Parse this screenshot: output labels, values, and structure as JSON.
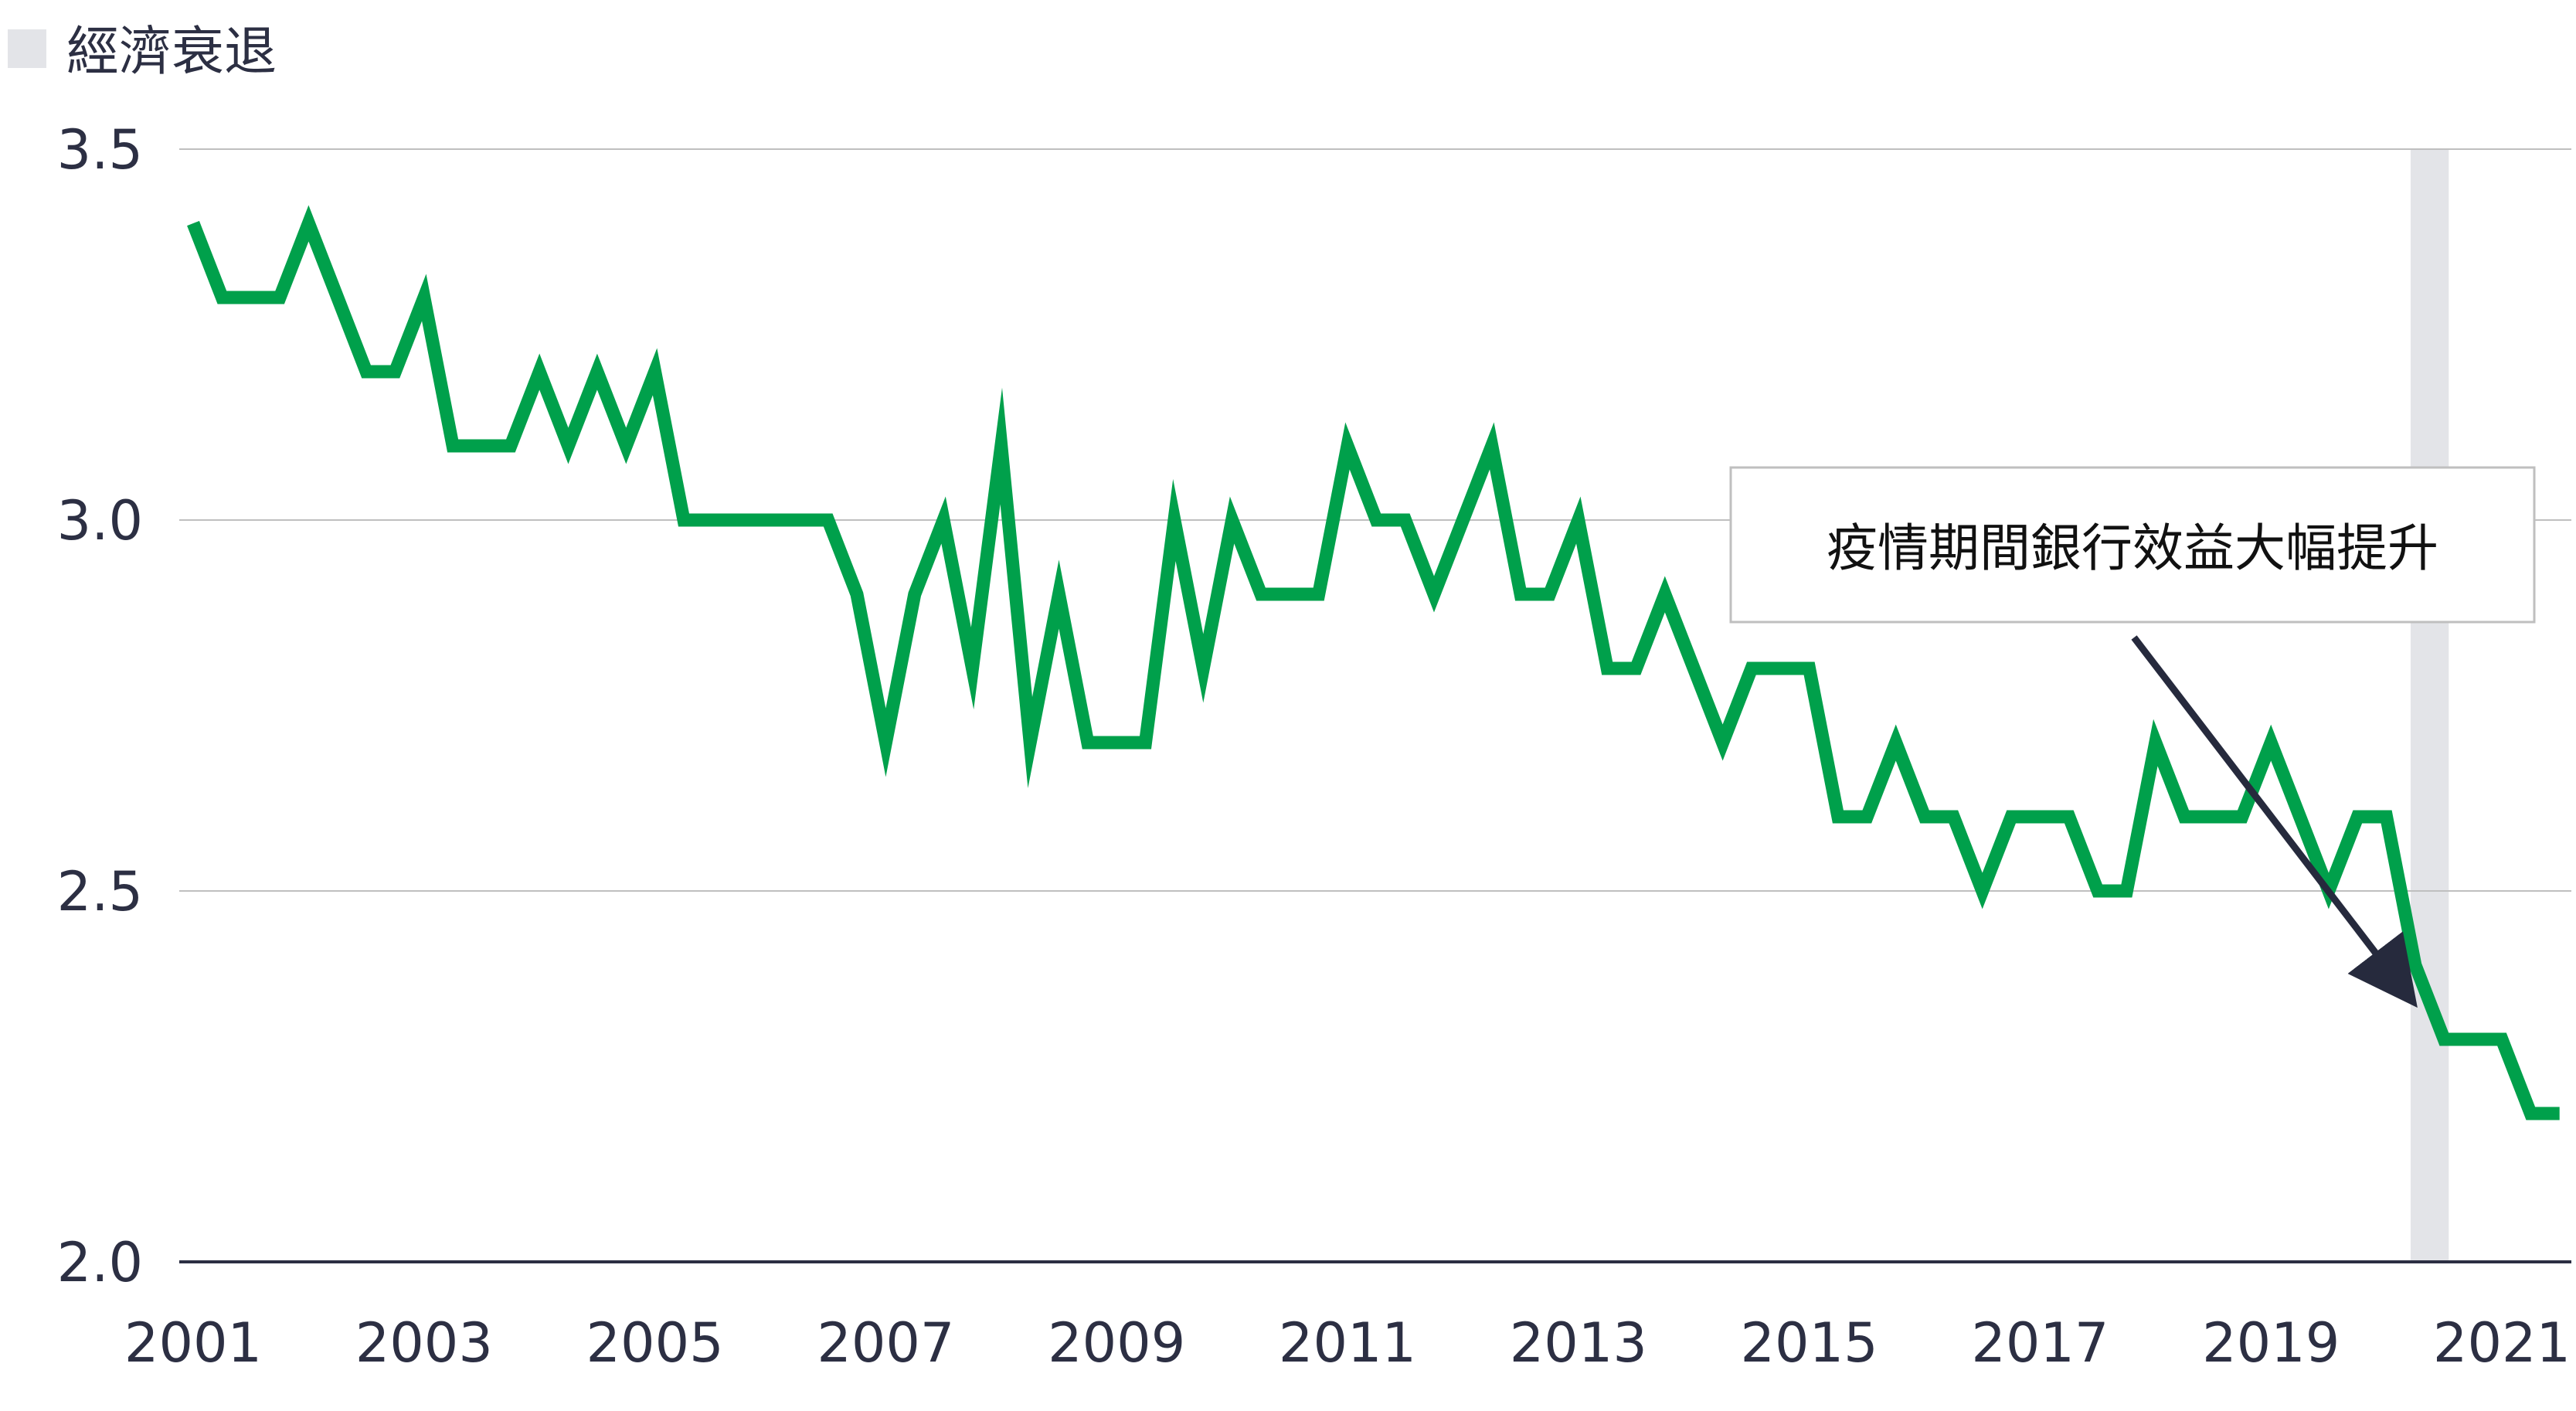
{
  "legend": {
    "recession_label": "經濟衰退",
    "recession_color": "#e3e4e8"
  },
  "annotation": {
    "text": "疫情期間銀行效益大幅提升"
  },
  "colors": {
    "line": "#00a04b",
    "grid": "#bfbfbf",
    "axis": "#2c2f43",
    "arrow": "#262a3d"
  },
  "chart_data": {
    "type": "line",
    "x_ticks": [
      "2001",
      "2003",
      "2005",
      "2007",
      "2009",
      "2011",
      "2013",
      "2015",
      "2017",
      "2019",
      "2021"
    ],
    "y_ticks": [
      "2.0",
      "2.5",
      "3.0",
      "3.5"
    ],
    "xlim": [
      2001.0,
      2021.5
    ],
    "ylim": [
      2.0,
      3.5
    ],
    "recession": [
      2020.25,
      2020.5
    ],
    "annotation_arrow_target": [
      2020.25,
      2.37
    ],
    "series": [
      {
        "x": [
          2001.0,
          2001.25,
          2001.5,
          2001.75,
          2002.0,
          2002.25,
          2002.5,
          2002.75,
          2003.0,
          2003.25,
          2003.5,
          2003.75,
          2004.0,
          2004.25,
          2004.5,
          2004.75,
          2005.0,
          2005.25,
          2005.5,
          2005.75,
          2006.0,
          2006.25,
          2006.5,
          2006.75,
          2007.0,
          2007.25,
          2007.5,
          2007.75,
          2008.0,
          2008.25,
          2008.5,
          2008.75,
          2009.0,
          2009.25,
          2009.5,
          2009.75,
          2010.0,
          2010.25,
          2010.5,
          2010.75,
          2011.0,
          2011.25,
          2011.5,
          2011.75,
          2012.0,
          2012.25,
          2012.5,
          2012.75,
          2013.0,
          2013.25,
          2013.5,
          2013.75,
          2014.0,
          2014.25,
          2014.5,
          2014.75,
          2015.0,
          2015.25,
          2015.5,
          2015.75,
          2016.0,
          2016.25,
          2016.5,
          2016.75,
          2017.0,
          2017.25,
          2017.5,
          2017.75,
          2018.0,
          2018.25,
          2018.5,
          2018.75,
          2019.0,
          2019.25,
          2019.5,
          2019.75,
          2020.0,
          2020.25,
          2020.5,
          2020.75,
          2021.0,
          2021.25,
          2021.5
        ],
        "values": [
          3.4,
          3.3,
          3.3,
          3.3,
          3.4,
          3.3,
          3.2,
          3.2,
          3.3,
          3.1,
          3.1,
          3.1,
          3.2,
          3.1,
          3.2,
          3.1,
          3.2,
          3.0,
          3.0,
          3.0,
          3.0,
          3.0,
          3.0,
          2.9,
          2.7,
          2.9,
          3.0,
          2.8,
          3.1,
          2.7,
          2.9,
          2.7,
          2.7,
          2.7,
          3.0,
          2.8,
          3.0,
          2.9,
          2.9,
          2.9,
          3.1,
          3.0,
          3.0,
          2.9,
          3.0,
          3.1,
          2.9,
          2.9,
          3.0,
          2.8,
          2.8,
          2.9,
          2.8,
          2.7,
          2.8,
          2.8,
          2.8,
          2.6,
          2.6,
          2.7,
          2.6,
          2.6,
          2.5,
          2.6,
          2.6,
          2.6,
          2.5,
          2.5,
          2.7,
          2.6,
          2.6,
          2.6,
          2.7,
          2.6,
          2.5,
          2.6,
          2.6,
          2.4,
          2.3,
          2.3,
          2.3,
          2.2,
          2.2
        ]
      }
    ]
  }
}
